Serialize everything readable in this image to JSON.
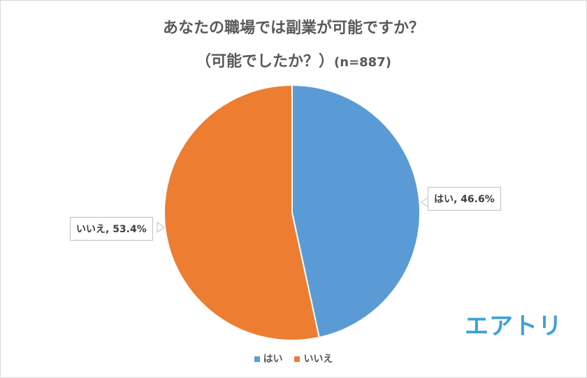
{
  "title": {
    "line1": "あなたの職場では副業が可能ですか？",
    "line2": "（可能でしたか？）",
    "sample": "(n=887)"
  },
  "chart_data": {
    "type": "pie",
    "title": "あなたの職場では副業が可能ですか？（可能でしたか？）(n=887)",
    "categories": [
      "はい",
      "いいえ"
    ],
    "values": [
      46.6,
      53.4
    ],
    "colors": [
      "#5b9bd5",
      "#ed7d31"
    ],
    "data_labels": [
      "はい, 46.6%",
      "いいえ, 53.4%"
    ],
    "legend_position": "bottom",
    "n": 887
  },
  "labels": {
    "yes": "はい, 46.6%",
    "no": "いいえ, 53.4%"
  },
  "legend": {
    "items": [
      {
        "label": "はい",
        "color": "#5b9bd5"
      },
      {
        "label": "いいえ",
        "color": "#ed7d31"
      }
    ]
  },
  "logo": {
    "text": "エアトリ",
    "color": "#3fa0d8"
  }
}
